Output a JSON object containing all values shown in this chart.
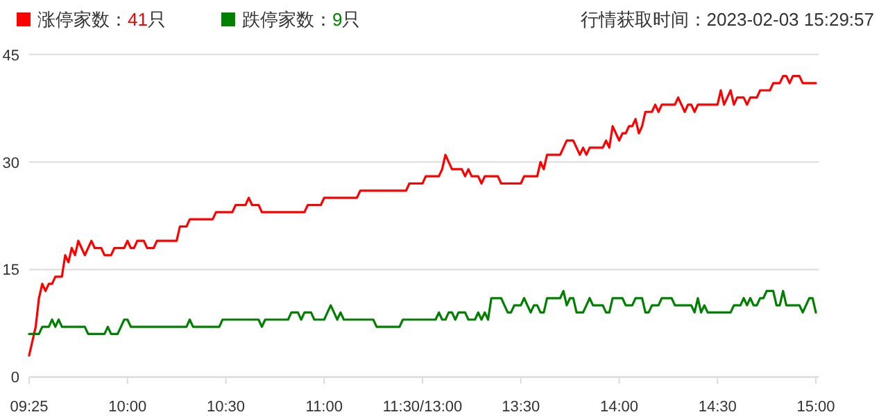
{
  "chart_data": {
    "type": "line",
    "legend": "top left",
    "grid": "y",
    "marker": "none",
    "line_style": "solid",
    "annotations": [
      "行情获取时间：2023-02-03 15:29:57"
    ],
    "ylim": [
      0,
      45
    ],
    "yticks": [
      0,
      15,
      30,
      45
    ],
    "categories": [
      "09:25",
      null,
      null,
      null,
      null,
      null,
      null,
      null,
      null,
      null,
      null,
      null,
      null,
      null,
      null,
      null,
      null,
      null,
      null,
      null,
      null,
      null,
      null,
      null,
      null,
      null,
      null,
      null,
      null,
      null,
      "10:00",
      null,
      null,
      null,
      null,
      null,
      null,
      null,
      null,
      null,
      null,
      null,
      null,
      null,
      null,
      null,
      null,
      null,
      null,
      null,
      null,
      null,
      null,
      null,
      null,
      null,
      null,
      null,
      null,
      null,
      "10:30",
      null,
      null,
      null,
      null,
      null,
      null,
      null,
      null,
      null,
      null,
      null,
      null,
      null,
      null,
      null,
      null,
      null,
      null,
      null,
      null,
      null,
      null,
      null,
      null,
      null,
      null,
      null,
      null,
      null,
      "11:00",
      null,
      null,
      null,
      null,
      null,
      null,
      null,
      null,
      null,
      null,
      null,
      null,
      null,
      null,
      null,
      null,
      null,
      null,
      null,
      null,
      null,
      null,
      null,
      null,
      null,
      null,
      null,
      null,
      null,
      "11:30/13:00",
      null,
      null,
      null,
      null,
      null,
      null,
      null,
      null,
      null,
      null,
      null,
      null,
      null,
      null,
      null,
      null,
      null,
      null,
      null,
      null,
      null,
      null,
      null,
      null,
      null,
      null,
      null,
      null,
      null,
      "13:30",
      null,
      null,
      null,
      null,
      null,
      null,
      null,
      null,
      null,
      null,
      null,
      null,
      null,
      null,
      null,
      null,
      null,
      null,
      null,
      null,
      null,
      null,
      null,
      null,
      null,
      null,
      null,
      null,
      null,
      "14:00",
      null,
      null,
      null,
      null,
      null,
      null,
      null,
      null,
      null,
      null,
      null,
      null,
      null,
      null,
      null,
      null,
      null,
      null,
      null,
      null,
      null,
      null,
      null,
      null,
      null,
      null,
      null,
      null,
      null,
      "14:30",
      null,
      null,
      null,
      null,
      null,
      null,
      null,
      null,
      null,
      null,
      null,
      null,
      null,
      null,
      null,
      null,
      null,
      null,
      null,
      null,
      null,
      null,
      null,
      null,
      null,
      null,
      null,
      null,
      null,
      "15:00"
    ],
    "series": [
      {
        "name": "涨停家数：41只",
        "color": "#ff0000",
        "values": [
          3,
          5,
          7,
          11,
          13,
          12,
          13,
          13,
          14,
          14,
          14,
          17,
          16,
          18,
          17,
          19,
          18,
          17,
          18,
          19,
          18,
          18,
          18,
          17,
          17,
          17,
          18,
          18,
          18,
          18,
          19,
          18,
          18,
          19,
          19,
          19,
          18,
          18,
          18,
          19,
          19,
          19,
          19,
          19,
          19,
          19,
          21,
          21,
          21,
          22,
          22,
          22,
          22,
          22,
          22,
          22,
          22,
          23,
          23,
          23,
          23,
          23,
          23,
          24,
          24,
          24,
          24,
          25,
          24,
          24,
          24,
          23,
          23,
          23,
          23,
          23,
          23,
          23,
          23,
          23,
          23,
          23,
          23,
          23,
          23,
          24,
          24,
          24,
          24,
          24,
          25,
          25,
          25,
          25,
          25,
          25,
          25,
          25,
          25,
          25,
          25,
          26,
          26,
          26,
          26,
          26,
          26,
          26,
          26,
          26,
          26,
          26,
          26,
          26,
          26,
          26,
          27,
          27,
          27,
          27,
          27,
          28,
          28,
          28,
          28,
          28,
          29,
          31,
          30,
          29,
          29,
          29,
          29,
          28,
          29,
          28,
          28,
          28,
          27,
          28,
          28,
          28,
          28,
          28,
          27,
          27,
          27,
          27,
          27,
          27,
          27,
          28,
          28,
          28,
          28,
          28,
          30,
          29,
          31,
          31,
          31,
          31,
          31,
          32,
          33,
          33,
          33,
          32,
          31,
          32,
          31,
          32,
          32,
          32,
          32,
          32,
          33,
          32,
          35,
          34,
          33,
          34,
          34,
          35,
          35,
          36,
          34,
          35,
          37,
          37,
          37,
          38,
          37,
          38,
          38,
          38,
          38,
          38,
          39,
          38,
          37,
          38,
          38,
          37,
          38,
          38,
          38,
          38,
          38,
          38,
          38,
          40,
          38,
          39,
          40,
          38,
          39,
          39,
          39,
          38,
          39,
          39,
          39,
          40,
          40,
          40,
          40,
          41,
          41,
          41,
          42,
          42,
          41,
          42,
          42,
          42,
          41,
          41,
          41,
          41,
          41
        ]
      },
      {
        "name": "跌停家数：9只",
        "color": "#008000",
        "values": [
          6,
          6,
          6,
          6,
          7,
          7,
          7,
          8,
          7,
          8,
          7,
          7,
          7,
          7,
          7,
          7,
          7,
          7,
          6,
          6,
          6,
          6,
          6,
          6,
          7,
          6,
          6,
          6,
          7,
          8,
          8,
          7,
          7,
          7,
          7,
          7,
          7,
          7,
          7,
          7,
          7,
          7,
          7,
          7,
          7,
          7,
          7,
          7,
          7,
          8,
          7,
          7,
          7,
          7,
          7,
          7,
          7,
          7,
          7,
          8,
          8,
          8,
          8,
          8,
          8,
          8,
          8,
          8,
          8,
          8,
          8,
          7,
          8,
          8,
          8,
          8,
          8,
          8,
          8,
          8,
          9,
          9,
          9,
          8,
          9,
          9,
          9,
          8,
          8,
          8,
          8,
          9,
          10,
          9,
          8,
          9,
          8,
          8,
          8,
          8,
          8,
          8,
          8,
          8,
          8,
          8,
          7,
          7,
          7,
          7,
          7,
          7,
          7,
          7,
          8,
          8,
          8,
          8,
          8,
          8,
          8,
          8,
          8,
          8,
          8,
          9,
          8,
          8,
          9,
          9,
          8,
          9,
          9,
          9,
          8,
          8,
          8,
          9,
          8,
          9,
          8,
          11,
          11,
          11,
          11,
          10,
          9,
          9,
          10,
          10,
          10,
          11,
          10,
          9,
          10,
          10,
          9,
          9,
          11,
          11,
          11,
          11,
          11,
          12,
          10,
          11,
          11,
          9,
          9,
          9,
          10,
          11,
          10,
          10,
          10,
          10,
          9,
          9,
          11,
          11,
          11,
          11,
          10,
          10,
          10,
          11,
          11,
          11,
          9,
          9,
          10,
          10,
          10,
          11,
          11,
          11,
          11,
          10,
          10,
          10,
          10,
          10,
          10,
          9,
          11,
          9,
          10,
          9,
          9,
          9,
          9,
          9,
          9,
          9,
          9,
          10,
          10,
          10,
          11,
          10,
          11,
          10,
          10,
          11,
          11,
          12,
          12,
          12,
          10,
          10,
          12,
          10,
          10,
          10,
          10,
          10,
          9,
          10,
          11,
          11,
          9
        ]
      }
    ]
  }
}
